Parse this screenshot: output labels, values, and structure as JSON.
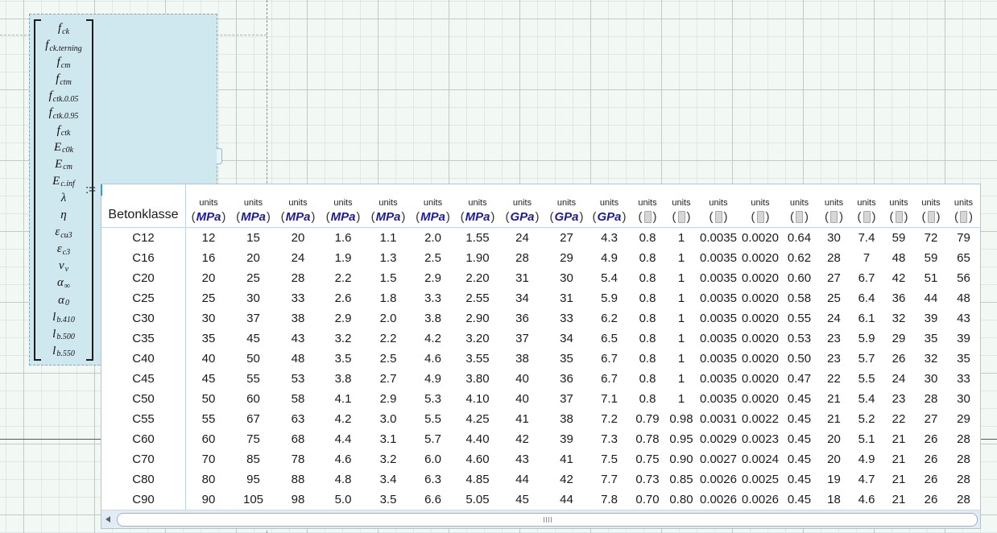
{
  "worksheet": {
    "assign_operator": ":="
  },
  "matrix": {
    "entries": [
      {
        "name": "f-ck",
        "base": "f",
        "sub": "ck"
      },
      {
        "name": "f-ck-terning",
        "base": "f",
        "sub": "ck.terning"
      },
      {
        "name": "f-cm",
        "base": "f",
        "sub": "cm"
      },
      {
        "name": "f-ctm",
        "base": "f",
        "sub": "ctm"
      },
      {
        "name": "f-ctk-005",
        "base": "f",
        "sub": "ctk.0.05"
      },
      {
        "name": "f-ctk-095",
        "base": "f",
        "sub": "ctk.0.95"
      },
      {
        "name": "f-ctk",
        "base": "f",
        "sub": "ctk"
      },
      {
        "name": "E-c0k",
        "base": "E",
        "sub": "c0k"
      },
      {
        "name": "E-cm",
        "base": "E",
        "sub": "cm"
      },
      {
        "name": "E-c-inf",
        "base": "E",
        "sub": "c.inf"
      },
      {
        "name": "lambda",
        "base": "λ",
        "sub": ""
      },
      {
        "name": "eta",
        "base": "η",
        "sub": ""
      },
      {
        "name": "eps-cu3",
        "base": "ε",
        "sub": "cu3"
      },
      {
        "name": "eps-c3",
        "base": "ε",
        "sub": "c3"
      },
      {
        "name": "v-v",
        "base": "v",
        "sub": "v"
      },
      {
        "name": "alpha-inf",
        "base": "α",
        "sub": "∞"
      },
      {
        "name": "alpha-0",
        "base": "α",
        "sub": "0"
      },
      {
        "name": "l-b-410",
        "base": "l",
        "sub": "b.410"
      },
      {
        "name": "l-b-500",
        "base": "l",
        "sub": "b.500"
      },
      {
        "name": "l-b-550",
        "base": "l",
        "sub": "b.550"
      }
    ]
  },
  "table": {
    "row_header_label": "Betonklasse",
    "units_caption": "units",
    "column_units": [
      "MPa",
      "MPa",
      "MPa",
      "MPa",
      "MPa",
      "MPa",
      "MPa",
      "GPa",
      "GPa",
      "GPa",
      "",
      "",
      "",
      "",
      "",
      "",
      "",
      "",
      "",
      ""
    ],
    "rows": [
      {
        "name": "C12",
        "values": [
          "12",
          "15",
          "20",
          "1.6",
          "1.1",
          "2.0",
          "1.55",
          "24",
          "27",
          "4.3",
          "0.8",
          "1",
          "0.0035",
          "0.0020",
          "0.64",
          "30",
          "7.4",
          "59",
          "72",
          "79"
        ]
      },
      {
        "name": "C16",
        "values": [
          "16",
          "20",
          "24",
          "1.9",
          "1.3",
          "2.5",
          "1.90",
          "28",
          "29",
          "4.9",
          "0.8",
          "1",
          "0.0035",
          "0.0020",
          "0.62",
          "28",
          "7",
          "48",
          "59",
          "65"
        ]
      },
      {
        "name": "C20",
        "values": [
          "20",
          "25",
          "28",
          "2.2",
          "1.5",
          "2.9",
          "2.20",
          "31",
          "30",
          "5.4",
          "0.8",
          "1",
          "0.0035",
          "0.0020",
          "0.60",
          "27",
          "6.7",
          "42",
          "51",
          "56"
        ]
      },
      {
        "name": "C25",
        "values": [
          "25",
          "30",
          "33",
          "2.6",
          "1.8",
          "3.3",
          "2.55",
          "34",
          "31",
          "5.9",
          "0.8",
          "1",
          "0.0035",
          "0.0020",
          "0.58",
          "25",
          "6.4",
          "36",
          "44",
          "48"
        ]
      },
      {
        "name": "C30",
        "values": [
          "30",
          "37",
          "38",
          "2.9",
          "2.0",
          "3.8",
          "2.90",
          "36",
          "33",
          "6.2",
          "0.8",
          "1",
          "0.0035",
          "0.0020",
          "0.55",
          "24",
          "6.1",
          "32",
          "39",
          "43"
        ]
      },
      {
        "name": "C35",
        "values": [
          "35",
          "45",
          "43",
          "3.2",
          "2.2",
          "4.2",
          "3.20",
          "37",
          "34",
          "6.5",
          "0.8",
          "1",
          "0.0035",
          "0.0020",
          "0.53",
          "23",
          "5.9",
          "29",
          "35",
          "39"
        ]
      },
      {
        "name": "C40",
        "values": [
          "40",
          "50",
          "48",
          "3.5",
          "2.5",
          "4.6",
          "3.55",
          "38",
          "35",
          "6.7",
          "0.8",
          "1",
          "0.0035",
          "0.0020",
          "0.50",
          "23",
          "5.7",
          "26",
          "32",
          "35"
        ]
      },
      {
        "name": "C45",
        "values": [
          "45",
          "55",
          "53",
          "3.8",
          "2.7",
          "4.9",
          "3.80",
          "40",
          "36",
          "6.7",
          "0.8",
          "1",
          "0.0035",
          "0.0020",
          "0.47",
          "22",
          "5.5",
          "24",
          "30",
          "33"
        ]
      },
      {
        "name": "C50",
        "values": [
          "50",
          "60",
          "58",
          "4.1",
          "2.9",
          "5.3",
          "4.10",
          "40",
          "37",
          "7.1",
          "0.8",
          "1",
          "0.0035",
          "0.0020",
          "0.45",
          "21",
          "5.4",
          "23",
          "28",
          "30"
        ]
      },
      {
        "name": "C55",
        "values": [
          "55",
          "67",
          "63",
          "4.2",
          "3.0",
          "5.5",
          "4.25",
          "41",
          "38",
          "7.2",
          "0.79",
          "0.98",
          "0.0031",
          "0.0022",
          "0.45",
          "21",
          "5.2",
          "22",
          "27",
          "29"
        ]
      },
      {
        "name": "C60",
        "values": [
          "60",
          "75",
          "68",
          "4.4",
          "3.1",
          "5.7",
          "4.40",
          "42",
          "39",
          "7.3",
          "0.78",
          "0.95",
          "0.0029",
          "0.0023",
          "0.45",
          "20",
          "5.1",
          "21",
          "26",
          "28"
        ]
      },
      {
        "name": "C70",
        "values": [
          "70",
          "85",
          "78",
          "4.6",
          "3.2",
          "6.0",
          "4.60",
          "43",
          "41",
          "7.5",
          "0.75",
          "0.90",
          "0.0027",
          "0.0024",
          "0.45",
          "20",
          "4.9",
          "21",
          "26",
          "28"
        ]
      },
      {
        "name": "C80",
        "values": [
          "80",
          "95",
          "88",
          "4.8",
          "3.4",
          "6.3",
          "4.85",
          "44",
          "42",
          "7.7",
          "0.73",
          "0.85",
          "0.0026",
          "0.0025",
          "0.45",
          "19",
          "4.7",
          "21",
          "26",
          "28"
        ]
      },
      {
        "name": "C90",
        "values": [
          "90",
          "105",
          "98",
          "5.0",
          "3.5",
          "6.6",
          "5.05",
          "45",
          "44",
          "7.8",
          "0.70",
          "0.80",
          "0.0026",
          "0.0026",
          "0.45",
          "18",
          "4.6",
          "21",
          "26",
          "28"
        ]
      }
    ]
  },
  "icons": {
    "scroll_left_arrow": "left-triangle",
    "scrollbar_grip": "vertical-bars",
    "unit_placeholder": "gray-box"
  },
  "colors": {
    "unit_text": "#1c1c9c",
    "selection_fill": "#cfe8ef",
    "selection_border": "#7fa8bf",
    "grid_minor": "#d7e9f8",
    "grid_major": "#aecdee",
    "table_border": "#b6c4cf",
    "header_rule": "#bcd6ec",
    "edit_cursor": "#3a9bd5"
  }
}
